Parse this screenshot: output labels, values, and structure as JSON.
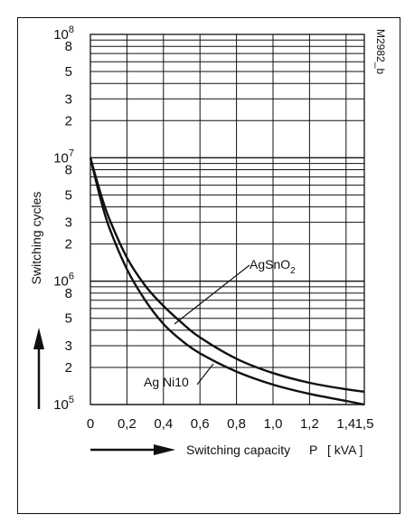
{
  "figure_id": "M2982_b",
  "chart_data": {
    "type": "line",
    "xlabel": "Switching capacity",
    "xlabel_symbol": "P",
    "xlabel_unit": "[ kVA ]",
    "ylabel": "Switching cycles",
    "x_ticks": [
      "0",
      "0,2",
      "0,4",
      "0,6",
      "0,8",
      "1,0",
      "1,2",
      "1,4",
      "1,5"
    ],
    "x_tick_values": [
      0,
      0.2,
      0.4,
      0.6,
      0.8,
      1.0,
      1.2,
      1.4,
      1.5
    ],
    "xlim": [
      0,
      1.5
    ],
    "y_scale": "log",
    "ylim": [
      100000,
      100000000
    ],
    "y_decades": [
      {
        "base": "10",
        "exp": "5",
        "value": 100000
      },
      {
        "base": "10",
        "exp": "6",
        "value": 1000000
      },
      {
        "base": "10",
        "exp": "7",
        "value": 10000000
      },
      {
        "base": "10",
        "exp": "8",
        "value": 100000000
      }
    ],
    "y_minor_ticks": [
      "2",
      "3",
      "5",
      "8"
    ],
    "grid": true,
    "series": [
      {
        "name": "AgSnO2",
        "label_base": "AgSnO",
        "label_sub": "2",
        "x": [
          0,
          0.05,
          0.1,
          0.2,
          0.3,
          0.4,
          0.5,
          0.6,
          0.8,
          1.0,
          1.2,
          1.4,
          1.5
        ],
        "y": [
          10000000,
          5500000,
          3300000,
          1550000,
          920000,
          630000,
          460000,
          350000,
          235000,
          180000,
          150000,
          133000,
          127000
        ]
      },
      {
        "name": "Ag Ni10",
        "label_base": "Ag Ni10",
        "label_sub": "",
        "x": [
          0,
          0.05,
          0.1,
          0.2,
          0.3,
          0.4,
          0.5,
          0.6,
          0.8,
          1.0,
          1.2,
          1.4,
          1.5
        ],
        "y": [
          10000000,
          5000000,
          2800000,
          1250000,
          700000,
          450000,
          330000,
          260000,
          185000,
          145000,
          122000,
          107000,
          100000
        ]
      }
    ]
  }
}
